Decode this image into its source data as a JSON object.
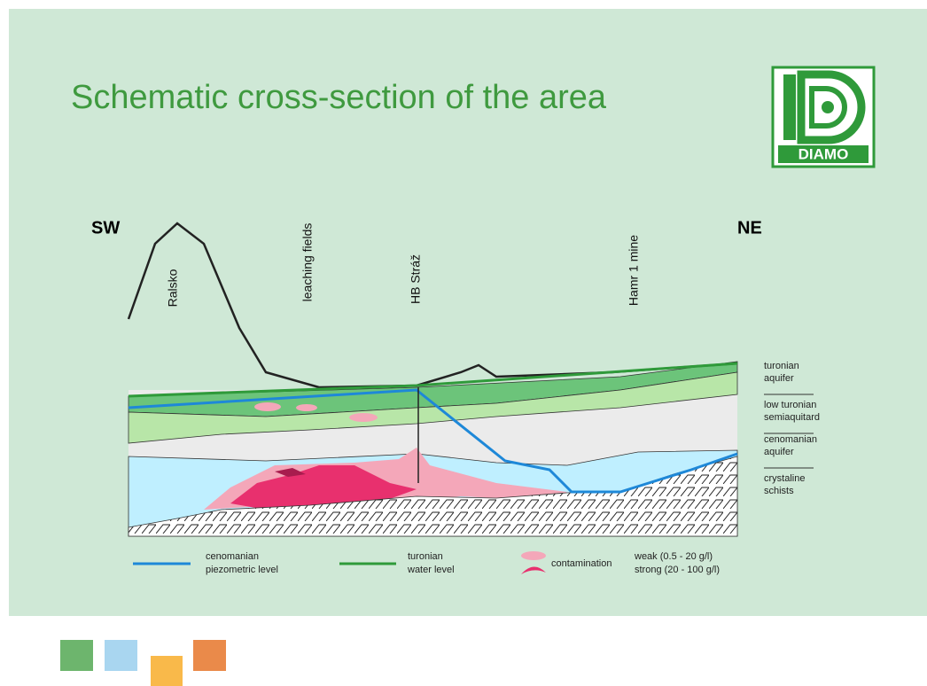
{
  "header": {
    "title": "Schematic cross-section of the area"
  },
  "logo": {
    "label": "DIAMO"
  },
  "diagram": {
    "directions": [
      "SW",
      "NE"
    ],
    "locations": [
      "Ralsko",
      "leaching fields",
      "HB Stráž",
      "Hamr 1  mine"
    ],
    "layers": [
      [
        "turonian",
        "aquifer"
      ],
      [
        "low turonian",
        "semiaquitard"
      ],
      [
        "cenomanian",
        "aquifer"
      ],
      [
        "crystaline",
        "schists"
      ]
    ],
    "legend": {
      "piezometric": [
        "cenomanian",
        "piezometric level"
      ],
      "water_level": [
        "turonian",
        "water level"
      ],
      "contamination": "contamination",
      "weak": "weak (0.5 - 20 g/l)",
      "strong": "strong (20 - 100 g/l)"
    }
  }
}
